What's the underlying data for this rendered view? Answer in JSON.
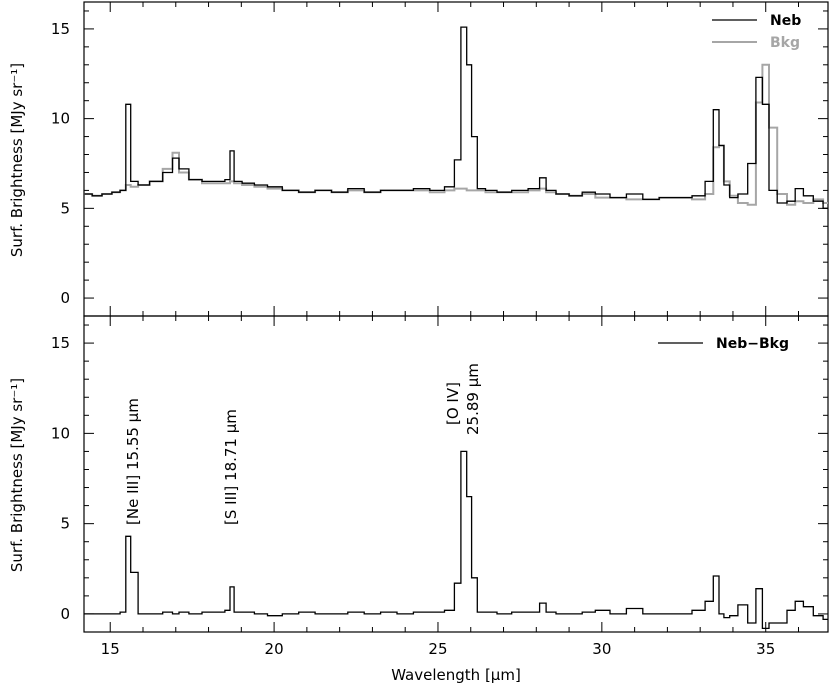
{
  "chart_data": [
    {
      "type": "line",
      "panel": "top",
      "xlabel": "",
      "ylabel": "Surf. Brightness [MJy sr⁻¹]",
      "xlim": [
        14.2,
        36.9
      ],
      "ylim": [
        -1,
        16.5
      ],
      "xticks": [
        15,
        20,
        25,
        30,
        35
      ],
      "yticks": [
        0,
        5,
        10,
        15
      ],
      "legend_position": "top-right",
      "series": [
        {
          "name": "Neb",
          "color": "#000000",
          "x": [
            14.3,
            14.6,
            14.9,
            15.2,
            15.4,
            15.55,
            15.7,
            16.0,
            16.4,
            16.8,
            17.0,
            17.2,
            17.6,
            18.0,
            18.4,
            18.6,
            18.71,
            18.85,
            19.2,
            19.6,
            20.0,
            20.5,
            21.0,
            21.5,
            22.0,
            22.5,
            23.0,
            23.5,
            24.0,
            24.5,
            25.0,
            25.4,
            25.6,
            25.8,
            25.95,
            26.1,
            26.3,
            26.6,
            27.0,
            27.5,
            28.0,
            28.2,
            28.4,
            28.8,
            29.2,
            29.6,
            30.0,
            30.5,
            31.0,
            31.5,
            32.0,
            32.5,
            33.0,
            33.3,
            33.5,
            33.65,
            33.8,
            34.0,
            34.3,
            34.6,
            34.8,
            35.0,
            35.2,
            35.5,
            35.8,
            36.0,
            36.3,
            36.6,
            36.9
          ],
          "values": [
            5.8,
            5.7,
            5.8,
            5.9,
            6.0,
            10.8,
            6.5,
            6.3,
            6.5,
            7.0,
            7.8,
            7.2,
            6.6,
            6.5,
            6.5,
            6.6,
            8.2,
            6.5,
            6.4,
            6.3,
            6.2,
            6.0,
            5.9,
            6.0,
            5.9,
            6.1,
            5.9,
            6.0,
            6.0,
            6.1,
            6.0,
            6.2,
            7.7,
            15.1,
            13.0,
            9.0,
            6.1,
            6.0,
            5.9,
            6.0,
            6.1,
            6.7,
            6.0,
            5.8,
            5.7,
            5.9,
            5.8,
            5.6,
            5.8,
            5.5,
            5.6,
            5.6,
            5.7,
            6.5,
            10.5,
            8.5,
            6.3,
            5.6,
            5.8,
            7.5,
            12.3,
            10.8,
            6.0,
            5.3,
            5.4,
            6.1,
            5.7,
            5.4,
            5.0
          ]
        },
        {
          "name": "Bkg",
          "color": "#a6a6a6",
          "x": [
            14.3,
            14.6,
            14.9,
            15.2,
            15.4,
            15.55,
            15.7,
            16.0,
            16.4,
            16.8,
            17.0,
            17.2,
            17.6,
            18.0,
            18.4,
            18.6,
            18.71,
            18.85,
            19.2,
            19.6,
            20.0,
            20.5,
            21.0,
            21.5,
            22.0,
            22.5,
            23.0,
            23.5,
            24.0,
            24.5,
            25.0,
            25.4,
            25.6,
            25.8,
            25.95,
            26.1,
            26.3,
            26.6,
            27.0,
            27.5,
            28.0,
            28.2,
            28.4,
            28.8,
            29.2,
            29.6,
            30.0,
            30.5,
            31.0,
            31.5,
            32.0,
            32.5,
            33.0,
            33.3,
            33.5,
            33.65,
            33.8,
            34.0,
            34.3,
            34.6,
            34.8,
            35.0,
            35.2,
            35.5,
            35.8,
            36.0,
            36.3,
            36.6,
            36.9
          ],
          "values": [
            5.8,
            5.7,
            5.8,
            5.9,
            6.0,
            6.3,
            6.2,
            6.3,
            6.5,
            7.2,
            8.1,
            7.0,
            6.6,
            6.4,
            6.4,
            6.4,
            6.5,
            6.4,
            6.3,
            6.2,
            6.1,
            6.0,
            5.9,
            6.0,
            5.9,
            6.0,
            5.9,
            6.0,
            6.0,
            6.0,
            5.9,
            6.0,
            6.1,
            6.1,
            6.0,
            6.0,
            6.0,
            5.9,
            5.9,
            5.9,
            6.0,
            6.1,
            5.9,
            5.8,
            5.7,
            5.8,
            5.6,
            5.6,
            5.5,
            5.5,
            5.6,
            5.6,
            5.5,
            5.8,
            8.4,
            8.5,
            6.5,
            5.7,
            5.3,
            5.2,
            10.9,
            13.0,
            9.5,
            5.8,
            5.2,
            5.4,
            5.3,
            5.5,
            5.3
          ]
        }
      ]
    },
    {
      "type": "line",
      "panel": "bottom",
      "xlabel": "Wavelength [μm]",
      "ylabel": "Surf. Brightness [MJy sr⁻¹]",
      "xlim": [
        14.2,
        36.9
      ],
      "ylim": [
        -1,
        16.5
      ],
      "xticks": [
        15,
        20,
        25,
        30,
        35
      ],
      "yticks": [
        0,
        5,
        10,
        15
      ],
      "legend_position": "top-right",
      "annotations": [
        {
          "text": "[Ne III] 15.55 μm",
          "x": 15.55
        },
        {
          "text": "[S III] 18.71 μm",
          "x": 18.71
        },
        {
          "text": "[O IV]",
          "x": 25.89
        },
        {
          "text": "25.89 μm",
          "x": 25.89
        }
      ],
      "series": [
        {
          "name": "Neb−Bkg",
          "color": "#000000",
          "x": [
            14.3,
            14.6,
            14.9,
            15.2,
            15.4,
            15.55,
            15.7,
            16.0,
            16.4,
            16.8,
            17.0,
            17.2,
            17.6,
            18.0,
            18.4,
            18.6,
            18.71,
            18.85,
            19.2,
            19.6,
            20.0,
            20.5,
            21.0,
            21.5,
            22.0,
            22.5,
            23.0,
            23.5,
            24.0,
            24.5,
            25.0,
            25.4,
            25.6,
            25.8,
            25.95,
            26.1,
            26.3,
            26.6,
            27.0,
            27.5,
            28.0,
            28.2,
            28.4,
            28.8,
            29.2,
            29.6,
            30.0,
            30.5,
            31.0,
            31.5,
            32.0,
            32.5,
            33.0,
            33.3,
            33.5,
            33.65,
            33.8,
            34.0,
            34.3,
            34.6,
            34.8,
            35.0,
            35.2,
            35.5,
            35.8,
            36.0,
            36.3,
            36.6,
            36.9
          ],
          "values": [
            0.0,
            0.0,
            0.0,
            0.0,
            0.1,
            4.3,
            2.3,
            0.0,
            0.0,
            0.1,
            0.0,
            0.1,
            0.0,
            0.1,
            0.1,
            0.2,
            1.5,
            0.1,
            0.1,
            0.0,
            -0.1,
            0.0,
            0.1,
            0.0,
            0.0,
            0.1,
            0.0,
            0.1,
            0.0,
            0.1,
            0.1,
            0.2,
            1.7,
            9.0,
            6.5,
            2.0,
            0.1,
            0.1,
            0.0,
            0.1,
            0.1,
            0.6,
            0.1,
            0.0,
            0.0,
            0.1,
            0.2,
            0.0,
            0.3,
            0.0,
            0.0,
            0.0,
            0.2,
            0.7,
            2.1,
            0.0,
            -0.2,
            -0.1,
            0.5,
            -0.5,
            1.4,
            -0.8,
            -0.5,
            -0.5,
            0.2,
            0.7,
            0.4,
            -0.1,
            -0.3
          ]
        }
      ]
    }
  ]
}
